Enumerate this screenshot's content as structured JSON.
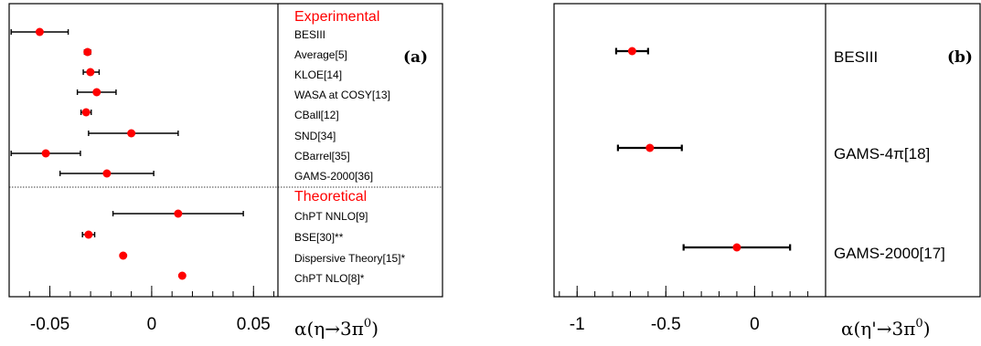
{
  "chart_data": [
    {
      "type": "scatter",
      "panel_tag": "(a)",
      "xlabel": {
        "main": "α(η→3π",
        "sup": "0",
        "close": ")"
      },
      "xlim": [
        -0.07,
        0.062
      ],
      "xticks": [
        "-0.05",
        "0",
        "0.05"
      ],
      "xtick_values": [
        -0.05,
        0,
        0.05
      ],
      "sections": [
        {
          "title": "Experimental",
          "color": "#ff0000",
          "entries": [
            {
              "label": "BESIII",
              "value": -0.055,
              "err_lo": 0.014,
              "err_hi": 0.014
            },
            {
              "label": "Average[5]",
              "value": -0.0315,
              "err_lo": 0.0015,
              "err_hi": 0.0015
            },
            {
              "label": "KLOE[14]",
              "value": -0.0301,
              "err_lo": 0.0035,
              "err_hi": 0.0043
            },
            {
              "label": "WASA at COSY[13]",
              "value": -0.027,
              "err_lo": 0.0095,
              "err_hi": 0.0095
            },
            {
              "label": "CBall[12]",
              "value": -0.0322,
              "err_lo": 0.0025,
              "err_hi": 0.0025
            },
            {
              "label": "SND[34]",
              "value": -0.01,
              "err_lo": 0.021,
              "err_hi": 0.023
            },
            {
              "label": "CBarrel[35]",
              "value": -0.052,
              "err_lo": 0.017,
              "err_hi": 0.017
            },
            {
              "label": "GAMS-2000[36]",
              "value": -0.022,
              "err_lo": 0.023,
              "err_hi": 0.023
            }
          ]
        },
        {
          "title": "Theoretical",
          "color": "#ff0000",
          "entries": [
            {
              "label": "ChPT NNLO[9]",
              "value": 0.013,
              "err_lo": 0.032,
              "err_hi": 0.032
            },
            {
              "label": "BSE[30]**",
              "value": -0.031,
              "err_lo": 0.003,
              "err_hi": 0.003
            },
            {
              "label": "Dispersive Theory[15]*",
              "value": -0.014,
              "err_lo": 0,
              "err_hi": 0
            },
            {
              "label": "ChPT NLO[8]*",
              "value": 0.015,
              "err_lo": 0,
              "err_hi": 0
            }
          ]
        }
      ]
    },
    {
      "type": "scatter",
      "panel_tag": "(b)",
      "xlabel": {
        "main": "α(η'→3π",
        "sup": "0",
        "close": ")"
      },
      "xlim": [
        -1.13,
        0.4
      ],
      "xticks": [
        "-1",
        "-0.5",
        "0"
      ],
      "xtick_values": [
        -1,
        -0.5,
        0
      ],
      "entries": [
        {
          "label": "BESIII",
          "value": -0.69,
          "err_lo": 0.09,
          "err_hi": 0.09
        },
        {
          "label": "GAMS-4π[18]",
          "value": -0.59,
          "err_lo": 0.18,
          "err_hi": 0.18
        },
        {
          "label": "GAMS-2000[17]",
          "value": -0.1,
          "err_lo": 0.3,
          "err_hi": 0.3
        }
      ]
    }
  ],
  "colors": {
    "marker": "#ff0000",
    "frame": "#000000",
    "error_bar": "#000000"
  }
}
